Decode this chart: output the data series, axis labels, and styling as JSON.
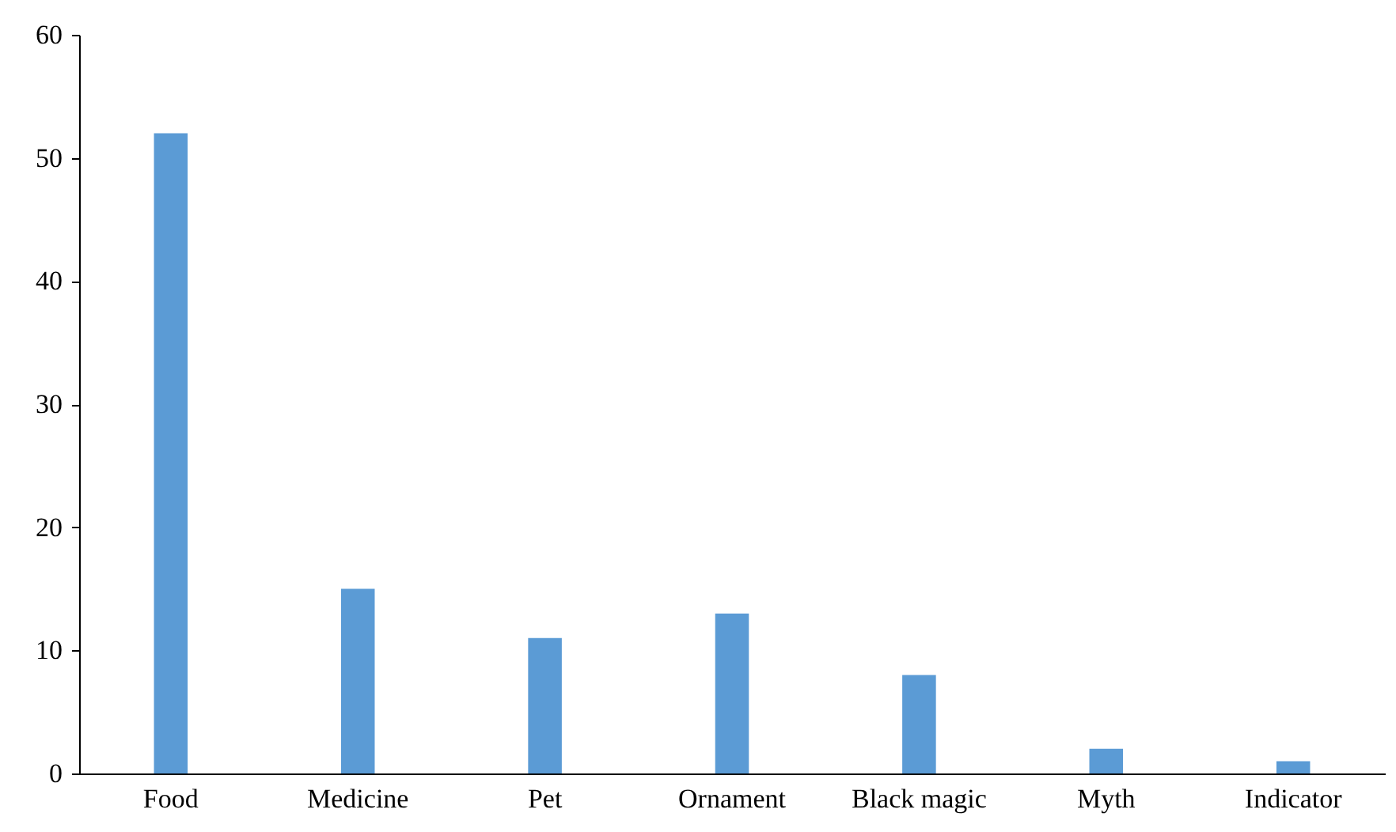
{
  "chart_data": {
    "type": "bar",
    "categories": [
      "Food",
      "Medicine",
      "Pet",
      "Ornament",
      "Black magic",
      "Myth",
      "Indicator"
    ],
    "values": [
      52,
      15,
      11,
      13,
      8,
      2,
      1
    ],
    "color": "#5b9bd5",
    "ylim": [
      0,
      60
    ],
    "yticks": [
      0,
      10,
      20,
      30,
      40,
      50,
      60
    ],
    "grid": false
  }
}
